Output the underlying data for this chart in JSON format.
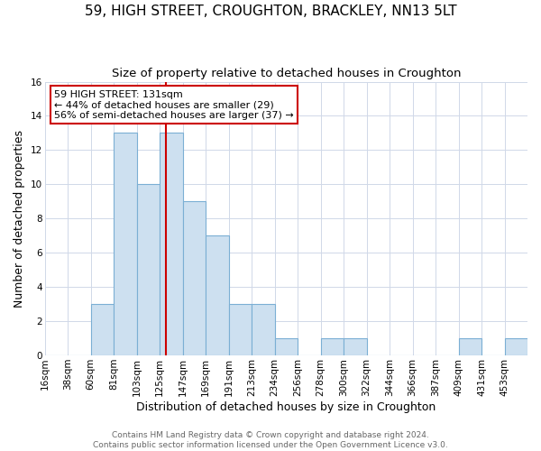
{
  "title": "59, HIGH STREET, CROUGHTON, BRACKLEY, NN13 5LT",
  "subtitle": "Size of property relative to detached houses in Croughton",
  "xlabel": "Distribution of detached houses by size in Croughton",
  "ylabel": "Number of detached properties",
  "bin_labels": [
    "16sqm",
    "38sqm",
    "60sqm",
    "81sqm",
    "103sqm",
    "125sqm",
    "147sqm",
    "169sqm",
    "191sqm",
    "213sqm",
    "234sqm",
    "256sqm",
    "278sqm",
    "300sqm",
    "322sqm",
    "344sqm",
    "366sqm",
    "387sqm",
    "409sqm",
    "431sqm",
    "453sqm"
  ],
  "counts": [
    0,
    0,
    3,
    13,
    10,
    13,
    9,
    7,
    3,
    3,
    1,
    0,
    1,
    1,
    0,
    0,
    0,
    0,
    1,
    0,
    1
  ],
  "n_bins": 21,
  "bar_color": "#cde0f0",
  "bar_edge_color": "#7bafd4",
  "property_bin_index": 5,
  "property_line_color": "#cc0000",
  "annotation_line1": "59 HIGH STREET: 131sqm",
  "annotation_line2": "← 44% of detached houses are smaller (29)",
  "annotation_line3": "56% of semi-detached houses are larger (37) →",
  "annotation_box_edge_color": "#cc0000",
  "ylim": [
    0,
    16
  ],
  "yticks": [
    0,
    2,
    4,
    6,
    8,
    10,
    12,
    14,
    16
  ],
  "footer_line1": "Contains HM Land Registry data © Crown copyright and database right 2024.",
  "footer_line2": "Contains public sector information licensed under the Open Government Licence v3.0.",
  "background_color": "#ffffff",
  "plot_background_color": "#ffffff",
  "title_fontsize": 11,
  "subtitle_fontsize": 9.5,
  "axis_label_fontsize": 9,
  "tick_fontsize": 7.5,
  "annotation_fontsize": 8,
  "footer_fontsize": 6.5
}
